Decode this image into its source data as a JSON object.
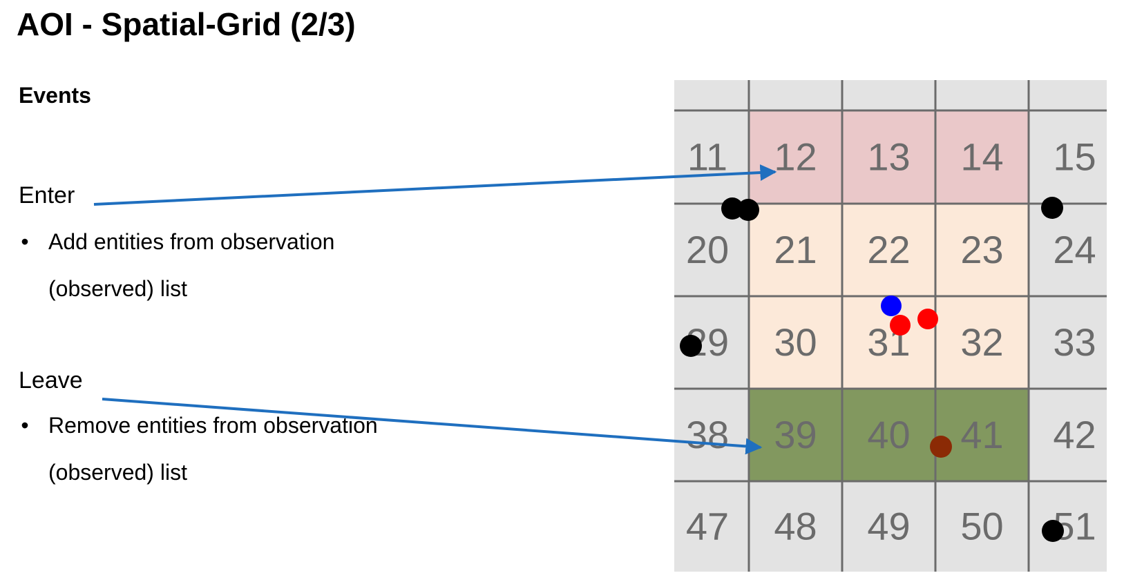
{
  "title": "AOI - Spatial-Grid (2/3)",
  "section": "Events",
  "enter": {
    "label": "Enter",
    "bullet": "•",
    "line1": "Add entities from observation",
    "line2": "(observed) list"
  },
  "leave": {
    "label": "Leave",
    "bullet": "•",
    "line1": "Remove entities from observation",
    "line2": "(observed) list"
  },
  "grid": {
    "rows": [
      [
        "",
        "",
        "",
        "",
        ""
      ],
      [
        "11",
        "12",
        "13",
        "14",
        "15"
      ],
      [
        "20",
        "21",
        "22",
        "23",
        "24"
      ],
      [
        "29",
        "30",
        "31",
        "32",
        "33"
      ],
      [
        "38",
        "39",
        "40",
        "41",
        "42"
      ],
      [
        "47",
        "48",
        "49",
        "50",
        "51"
      ]
    ],
    "fills": [
      [
        "default",
        "default",
        "default",
        "default",
        "default"
      ],
      [
        "default",
        "enter",
        "enter",
        "enter",
        "default"
      ],
      [
        "default",
        "observed",
        "observed",
        "observed",
        "default"
      ],
      [
        "default",
        "observed",
        "observed",
        "observed",
        "default"
      ],
      [
        "default",
        "leave",
        "leave",
        "leave",
        "default"
      ],
      [
        "default",
        "default",
        "default",
        "default",
        "default"
      ]
    ],
    "colors": {
      "default": "#e3e3e3",
      "enter": "#eac8c9",
      "observed": "#fce9d9",
      "leave": "#82985f",
      "line": "#6b6b6b",
      "number": "#6b6b6b",
      "arrow": "#1f6fbf"
    },
    "entities": [
      {
        "color": "#000000"
      },
      {
        "color": "#000000"
      },
      {
        "color": "#000000"
      },
      {
        "color": "#000000"
      },
      {
        "color": "#0000ff"
      },
      {
        "color": "#ff0000"
      },
      {
        "color": "#ff0000"
      },
      {
        "color": "#8b2a05"
      },
      {
        "color": "#000000"
      }
    ]
  }
}
